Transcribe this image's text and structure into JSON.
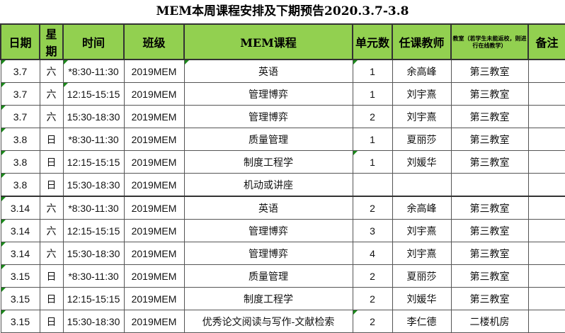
{
  "title": "MEM本周课程安排及下期预告2020.3.7-3.8",
  "headers": [
    "日期",
    "星期",
    "时间",
    "班级",
    "MEM课程",
    "单元数",
    "任课教师",
    "教室（若学生未能返校，则进行在线教学）",
    "备注"
  ],
  "rows": [
    [
      "3.7",
      "六",
      "*8:30-11:30",
      "2019MEM",
      "英语",
      "1",
      "余高峰",
      "第三教室",
      ""
    ],
    [
      "3.7",
      "六",
      "12:15-15:15",
      "2019MEM",
      "管理博弈",
      "1",
      "刘宇熹",
      "第三教室",
      ""
    ],
    [
      "3.7",
      "六",
      "15:30-18:30",
      "2019MEM",
      "管理博弈",
      "2",
      "刘宇熹",
      "第三教室",
      ""
    ],
    [
      "3.8",
      "日",
      "*8:30-11:30",
      "2019MEM",
      "质量管理",
      "1",
      "夏丽莎",
      "第三教室",
      ""
    ],
    [
      "3.8",
      "日",
      "12:15-15:15",
      "2019MEM",
      "制度工程学",
      "1",
      "刘媛华",
      "第三教室",
      ""
    ],
    [
      "3.8",
      "日",
      "15:30-18:30",
      "2019MEM",
      "机动或讲座",
      "",
      "",
      "",
      ""
    ],
    [
      "3.14",
      "六",
      "*8:30-11:30",
      "2019MEM",
      "英语",
      "2",
      "余高峰",
      "第三教室",
      ""
    ],
    [
      "3.14",
      "六",
      "12:15-15:15",
      "2019MEM",
      "管理博弈",
      "3",
      "刘宇熹",
      "第三教室",
      ""
    ],
    [
      "3.14",
      "六",
      "15:30-18:30",
      "2019MEM",
      "管理博弈",
      "4",
      "刘宇熹",
      "第三教室",
      ""
    ],
    [
      "3.15",
      "日",
      "*8:30-11:30",
      "2019MEM",
      "质量管理",
      "2",
      "夏丽莎",
      "第三教室",
      ""
    ],
    [
      "3.15",
      "日",
      "12:15-15:15",
      "2019MEM",
      "制度工程学",
      "2",
      "刘媛华",
      "第三教室",
      ""
    ],
    [
      "3.15",
      "日",
      "15:30-18:30",
      "2019MEM",
      "优秀论文阅读与写作-文献检索",
      "2",
      "李仁德",
      "二楼机房",
      ""
    ]
  ]
}
